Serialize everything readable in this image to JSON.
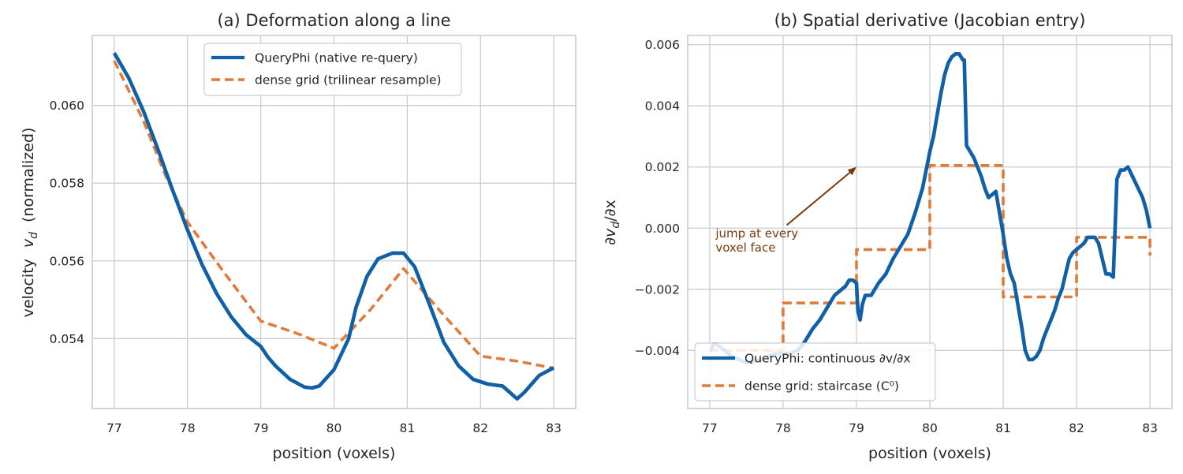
{
  "colors": {
    "queryphi": "#1060a8",
    "dense": "#e07b39",
    "annotation": "#7a3a0a",
    "grid": "#cccccc"
  },
  "chart_data": [
    {
      "type": "line",
      "title": "(a) Deformation along a line",
      "xlabel": "position (voxels)",
      "ylabel_prefix": "velocity",
      "ylabel_symbol": "v",
      "ylabel_subscript": "d",
      "ylabel_suffix": "(normalized)",
      "xlim": [
        76.7,
        83.3
      ],
      "ylim": [
        0.0522,
        0.0618
      ],
      "xticks": [
        77,
        78,
        79,
        80,
        81,
        82,
        83
      ],
      "xtick_labels": [
        "77",
        "78",
        "79",
        "80",
        "81",
        "82",
        "83"
      ],
      "yticks": [
        0.054,
        0.056,
        0.058,
        0.06
      ],
      "ytick_labels": [
        "0.054",
        "0.056",
        "0.058",
        "0.060"
      ],
      "grid": true,
      "legend_position": "top-center",
      "series": [
        {
          "name": "QueryPhi (native re-query)",
          "style": "solid",
          "x": [
            77.0,
            77.2,
            77.4,
            77.6,
            77.8,
            78.0,
            78.2,
            78.4,
            78.6,
            78.8,
            79.0,
            79.1,
            79.2,
            79.4,
            79.6,
            79.7,
            79.8,
            80.0,
            80.2,
            80.3,
            80.45,
            80.6,
            80.8,
            80.95,
            81.1,
            81.3,
            81.5,
            81.7,
            81.9,
            82.1,
            82.3,
            82.5,
            82.6,
            82.8,
            83.0
          ],
          "y": [
            0.06135,
            0.0607,
            0.05985,
            0.05885,
            0.0578,
            0.0568,
            0.0559,
            0.05515,
            0.05455,
            0.0541,
            0.0538,
            0.05352,
            0.0533,
            0.05295,
            0.05275,
            0.05273,
            0.05278,
            0.0532,
            0.054,
            0.0548,
            0.0556,
            0.05605,
            0.0562,
            0.0562,
            0.05585,
            0.0549,
            0.0539,
            0.0533,
            0.05295,
            0.05283,
            0.05278,
            0.05245,
            0.05262,
            0.05305,
            0.05325
          ]
        },
        {
          "name": "dense grid (trilinear resample)",
          "style": "dashed",
          "x": [
            77.0,
            77.4,
            77.7,
            78.0,
            78.5,
            79.0,
            79.5,
            80.0,
            80.5,
            80.95,
            81.5,
            82.0,
            82.5,
            83.0
          ],
          "y": [
            0.06115,
            0.0596,
            0.0582,
            0.057,
            0.0557,
            0.05445,
            0.05413,
            0.05375,
            0.05475,
            0.0558,
            0.0546,
            0.05355,
            0.05342,
            0.05324
          ]
        }
      ]
    },
    {
      "type": "line",
      "title": "(b) Spatial derivative (Jacobian entry)",
      "xlabel": "position (voxels)",
      "ylabel": "∂vd/∂x",
      "ylabel_partial": "∂",
      "ylabel_symbol": "v",
      "ylabel_subscript": "d",
      "ylabel_suffix": "/∂x",
      "xlim": [
        76.7,
        83.3
      ],
      "ylim": [
        -0.0059,
        0.0063
      ],
      "xticks": [
        77,
        78,
        79,
        80,
        81,
        82,
        83
      ],
      "xtick_labels": [
        "77",
        "78",
        "79",
        "80",
        "81",
        "82",
        "83"
      ],
      "yticks": [
        -0.004,
        -0.002,
        0.0,
        0.002,
        0.004,
        0.006
      ],
      "ytick_labels": [
        "−0.004",
        "−0.002",
        "0.000",
        "0.002",
        "0.004",
        "0.006"
      ],
      "grid": true,
      "legend_position": "lower-left",
      "annotation": {
        "text_line1": "jump at every",
        "text_line2": "voxel face",
        "text_x": 77.08,
        "text_y": -0.0003,
        "arrow_from": [
          78.05,
          0.0001
        ],
        "arrow_to": [
          79.0,
          0.002
        ]
      },
      "series": [
        {
          "name": "QueryPhi: continuous ∂v/∂x",
          "style": "solid",
          "x": [
            77.0,
            77.02,
            77.05,
            77.1,
            77.3,
            77.5,
            77.7,
            77.9,
            78.0,
            78.1,
            78.2,
            78.3,
            78.4,
            78.5,
            78.6,
            78.7,
            78.8,
            78.85,
            78.9,
            78.95,
            79.0,
            79.02,
            79.05,
            79.08,
            79.12,
            79.2,
            79.25,
            79.3,
            79.4,
            79.5,
            79.6,
            79.7,
            79.8,
            79.9,
            80.0,
            80.05,
            80.1,
            80.15,
            80.2,
            80.25,
            80.3,
            80.35,
            80.4,
            80.45,
            80.47,
            80.5,
            80.55,
            80.6,
            80.65,
            80.7,
            80.75,
            80.8,
            80.85,
            80.9,
            81.0,
            81.05,
            81.1,
            81.15,
            81.2,
            81.25,
            81.3,
            81.35,
            81.4,
            81.45,
            81.5,
            81.55,
            81.6,
            81.65,
            81.7,
            81.75,
            81.8,
            81.85,
            81.9,
            81.95,
            82.0,
            82.05,
            82.1,
            82.15,
            82.2,
            82.25,
            82.3,
            82.4,
            82.45,
            82.5,
            82.55,
            82.6,
            82.65,
            82.7,
            82.8,
            82.9,
            82.95,
            83.0
          ],
          "y": [
            -0.004,
            -0.004,
            -0.0038,
            -0.0038,
            -0.0042,
            -0.0044,
            -0.0043,
            -0.0041,
            -0.0041,
            -0.0041,
            -0.004,
            -0.0037,
            -0.0033,
            -0.003,
            -0.0026,
            -0.0022,
            -0.002,
            -0.0019,
            -0.0017,
            -0.0017,
            -0.0018,
            -0.0027,
            -0.003,
            -0.0025,
            -0.0022,
            -0.0022,
            -0.002,
            -0.0018,
            -0.0015,
            -0.001,
            -0.0006,
            -0.0002,
            0.0005,
            0.0013,
            0.0025,
            0.003,
            0.0037,
            0.0044,
            0.005,
            0.0054,
            0.0056,
            0.0057,
            0.0057,
            0.0055,
            0.0055,
            0.0027,
            0.0025,
            0.0023,
            0.002,
            0.0017,
            0.0013,
            0.001,
            0.0011,
            0.0012,
            -0.0002,
            -0.001,
            -0.0015,
            -0.0018,
            -0.0025,
            -0.0032,
            -0.004,
            -0.0043,
            -0.0043,
            -0.0042,
            -0.004,
            -0.0036,
            -0.0033,
            -0.003,
            -0.0027,
            -0.0023,
            -0.002,
            -0.0015,
            -0.001,
            -0.0008,
            -0.0007,
            -0.0006,
            -0.0005,
            -0.0003,
            -0.0003,
            -0.0003,
            -0.0005,
            -0.0015,
            -0.0015,
            -0.0016,
            0.0016,
            0.0019,
            0.0019,
            0.002,
            0.0015,
            0.001,
            0.0006,
            0.0
          ]
        },
        {
          "name": "dense grid: staircase (C⁰)",
          "style": "dashed",
          "x": [
            77.0,
            78.0,
            78.0,
            79.0,
            79.0,
            80.0,
            80.0,
            81.0,
            81.0,
            82.0,
            82.0,
            83.0,
            83.0
          ],
          "y": [
            -0.004,
            -0.004,
            -0.00245,
            -0.00245,
            -0.0007,
            -0.0007,
            0.00205,
            0.00205,
            -0.00225,
            -0.00225,
            -0.0003,
            -0.0003,
            -0.0009
          ]
        }
      ]
    }
  ]
}
